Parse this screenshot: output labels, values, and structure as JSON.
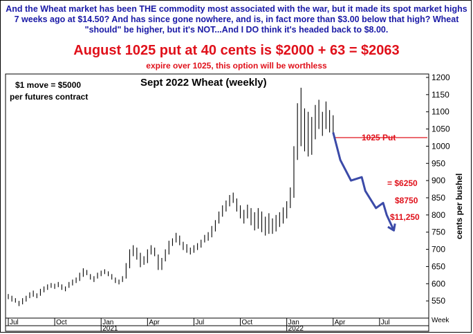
{
  "text": {
    "intro": "And the Wheat market has been THE commodity most associated with the war, but it made its spot market highs 7 weeks ago at $14.50? And has since gone nowhere, and is, in fact more than $3.00 below that high? Wheat \"should\" be higher, but it's NOT...And I DO think it's headed back to $8.00.",
    "headline": "August 1025 put at 40 cents is $2000 + 63 = $2063",
    "subline": "expire over 1025, this option will be worthless"
  },
  "colors": {
    "intro": "#1a1aa6",
    "red": "#e0101a",
    "projection": "#3b4aa8"
  },
  "chart_data": {
    "type": "ohlc",
    "title": "Sept 2022 Wheat (weekly)",
    "note_lines": [
      "$1 move = $5000",
      "per futures contract"
    ],
    "ylabel": "cents per bushel",
    "xlabel": "Week",
    "ylim": [
      500,
      1210
    ],
    "yticks": [
      550,
      600,
      650,
      700,
      750,
      800,
      850,
      900,
      950,
      1000,
      1050,
      1100,
      1150,
      1200
    ],
    "x_month_labels": [
      "Jul",
      "Oct",
      "Jan",
      "Apr",
      "Jul",
      "Oct",
      "Jan",
      "Apr",
      "Jul"
    ],
    "x_year_labels": [
      "2021",
      "2022"
    ],
    "week_range": [
      0,
      117
    ],
    "month_week_index": [
      0,
      13,
      26,
      39,
      52,
      65,
      78,
      91,
      104
    ],
    "year_week_index": [
      26,
      78
    ],
    "put_strike": {
      "label": "1025 Put",
      "value": 1025
    },
    "annotations": [
      "= $6250",
      "$8750",
      "$11,250"
    ],
    "projection": {
      "x": [
        91,
        93,
        96,
        99,
        100,
        103,
        105,
        106,
        108
      ],
      "y": [
        1040,
        960,
        900,
        910,
        870,
        820,
        835,
        800,
        755
      ]
    },
    "weekly": [
      [
        0,
        570,
        555
      ],
      [
        1,
        565,
        548
      ],
      [
        2,
        558,
        545
      ],
      [
        3,
        550,
        535
      ],
      [
        4,
        558,
        540
      ],
      [
        5,
        565,
        548
      ],
      [
        6,
        575,
        558
      ],
      [
        7,
        580,
        562
      ],
      [
        8,
        572,
        558
      ],
      [
        9,
        585,
        565
      ],
      [
        10,
        592,
        575
      ],
      [
        11,
        598,
        582
      ],
      [
        12,
        602,
        588
      ],
      [
        13,
        600,
        585
      ],
      [
        14,
        605,
        590
      ],
      [
        15,
        598,
        582
      ],
      [
        16,
        592,
        578
      ],
      [
        17,
        605,
        588
      ],
      [
        18,
        612,
        595
      ],
      [
        19,
        618,
        602
      ],
      [
        20,
        632,
        608
      ],
      [
        21,
        645,
        620
      ],
      [
        22,
        640,
        625
      ],
      [
        23,
        628,
        612
      ],
      [
        24,
        622,
        605
      ],
      [
        25,
        632,
        615
      ],
      [
        26,
        638,
        622
      ],
      [
        27,
        642,
        628
      ],
      [
        28,
        636,
        622
      ],
      [
        29,
        628,
        612
      ],
      [
        30,
        618,
        602
      ],
      [
        31,
        612,
        598
      ],
      [
        32,
        622,
        605
      ],
      [
        33,
        660,
        615
      ],
      [
        34,
        700,
        645
      ],
      [
        35,
        712,
        680
      ],
      [
        36,
        705,
        670
      ],
      [
        37,
        690,
        648
      ],
      [
        38,
        680,
        655
      ],
      [
        39,
        700,
        660
      ],
      [
        40,
        712,
        685
      ],
      [
        41,
        705,
        680
      ],
      [
        42,
        685,
        640
      ],
      [
        43,
        675,
        640
      ],
      [
        44,
        700,
        665
      ],
      [
        45,
        725,
        685
      ],
      [
        46,
        732,
        710
      ],
      [
        47,
        748,
        720
      ],
      [
        48,
        740,
        712
      ],
      [
        49,
        722,
        698
      ],
      [
        50,
        715,
        690
      ],
      [
        51,
        705,
        685
      ],
      [
        52,
        712,
        690
      ],
      [
        53,
        718,
        698
      ],
      [
        54,
        728,
        705
      ],
      [
        55,
        742,
        720
      ],
      [
        56,
        750,
        725
      ],
      [
        57,
        768,
        735
      ],
      [
        58,
        785,
        752
      ],
      [
        59,
        810,
        775
      ],
      [
        60,
        828,
        795
      ],
      [
        61,
        842,
        810
      ],
      [
        62,
        858,
        825
      ],
      [
        63,
        865,
        835
      ],
      [
        64,
        848,
        810
      ],
      [
        65,
        828,
        790
      ],
      [
        66,
        815,
        775
      ],
      [
        67,
        830,
        790
      ],
      [
        68,
        820,
        770
      ],
      [
        69,
        808,
        755
      ],
      [
        70,
        820,
        760
      ],
      [
        71,
        810,
        750
      ],
      [
        72,
        795,
        740
      ],
      [
        73,
        805,
        745
      ],
      [
        74,
        790,
        745
      ],
      [
        75,
        800,
        752
      ],
      [
        76,
        808,
        765
      ],
      [
        77,
        822,
        775
      ],
      [
        78,
        840,
        790
      ],
      [
        79,
        880,
        820
      ],
      [
        80,
        1000,
        850
      ],
      [
        81,
        1125,
        960
      ],
      [
        82,
        1170,
        1000
      ],
      [
        83,
        1110,
        985
      ],
      [
        84,
        1100,
        970
      ],
      [
        85,
        1085,
        975
      ],
      [
        86,
        1120,
        1020
      ],
      [
        87,
        1135,
        1050
      ],
      [
        88,
        1100,
        1030
      ],
      [
        89,
        1130,
        1050
      ],
      [
        90,
        1105,
        1040
      ],
      [
        91,
        1090,
        1040
      ]
    ]
  }
}
